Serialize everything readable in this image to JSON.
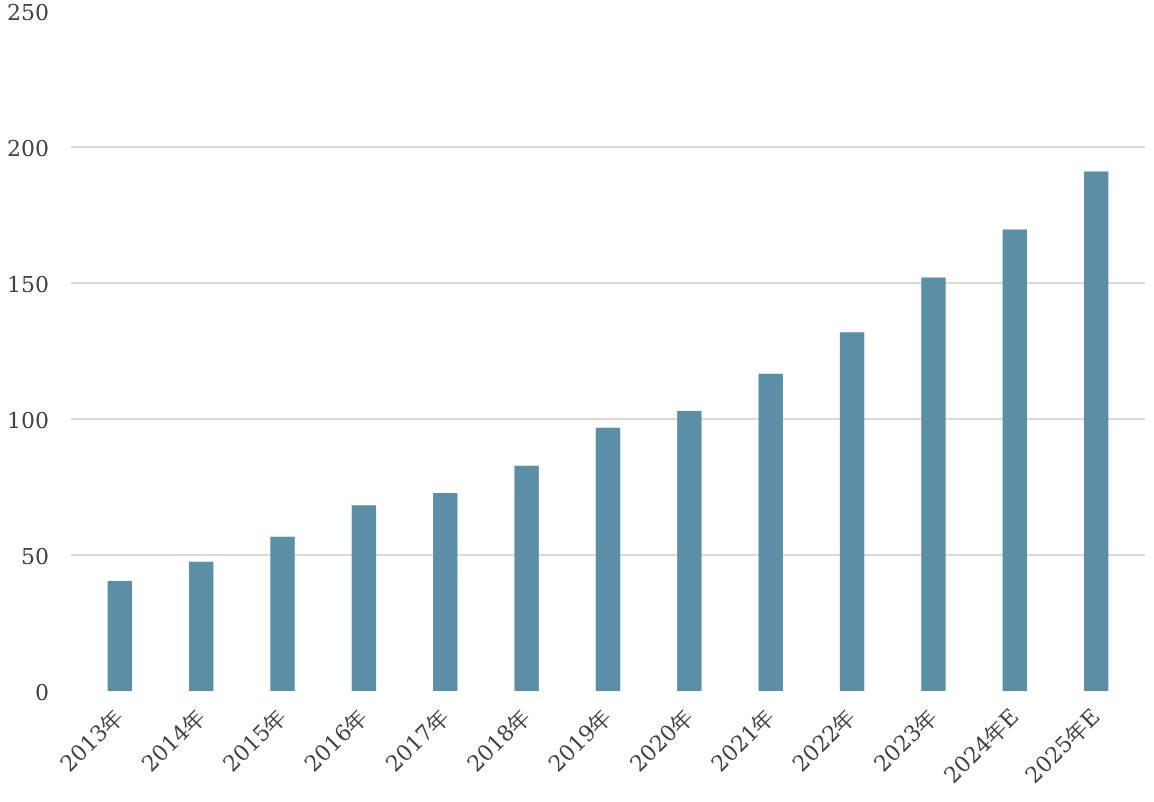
{
  "chart_data": {
    "type": "bar",
    "categories": [
      "2013年",
      "2014年",
      "2015年",
      "2016年",
      "2017年",
      "2018年",
      "2019年",
      "2020年",
      "2021年",
      "2022年",
      "2023年",
      "2024年E",
      "2025年E"
    ],
    "values": [
      40.4,
      47.5,
      56.7,
      68.3,
      72.8,
      82.8,
      96.8,
      102.9,
      116.6,
      131.9,
      152,
      169.7,
      191
    ],
    "color": "#5a8fa6",
    "ylim": [
      0,
      250
    ],
    "yticks": [
      0,
      50,
      100,
      150,
      200,
      250
    ],
    "grid": "y"
  }
}
